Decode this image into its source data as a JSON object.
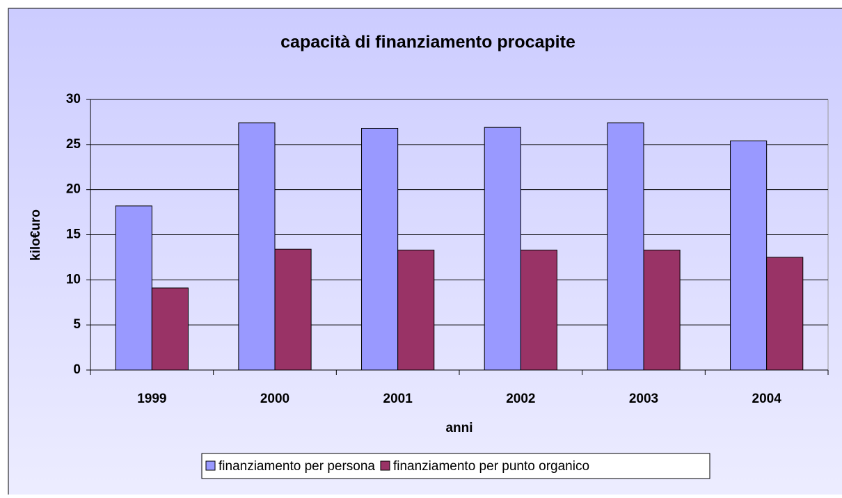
{
  "chart_data": {
    "type": "bar",
    "title": "capacità di finanziamento procapite",
    "x_label": "anni",
    "y_label": "kilo€uro",
    "categories": [
      "1999",
      "2000",
      "2001",
      "2002",
      "2003",
      "2004"
    ],
    "series": [
      {
        "name": "finanziamento per persona",
        "color": "#9999ff",
        "values": [
          18.2,
          27.4,
          26.8,
          26.9,
          27.4,
          25.4
        ]
      },
      {
        "name": "finanziamento per punto organico",
        "color": "#993366",
        "values": [
          9.1,
          13.4,
          13.3,
          13.3,
          13.3,
          12.5
        ]
      }
    ],
    "ylim": [
      0,
      30
    ],
    "yticks": [
      0,
      5,
      10,
      15,
      20,
      25,
      30
    ],
    "grid": true,
    "legend": "bottom"
  }
}
